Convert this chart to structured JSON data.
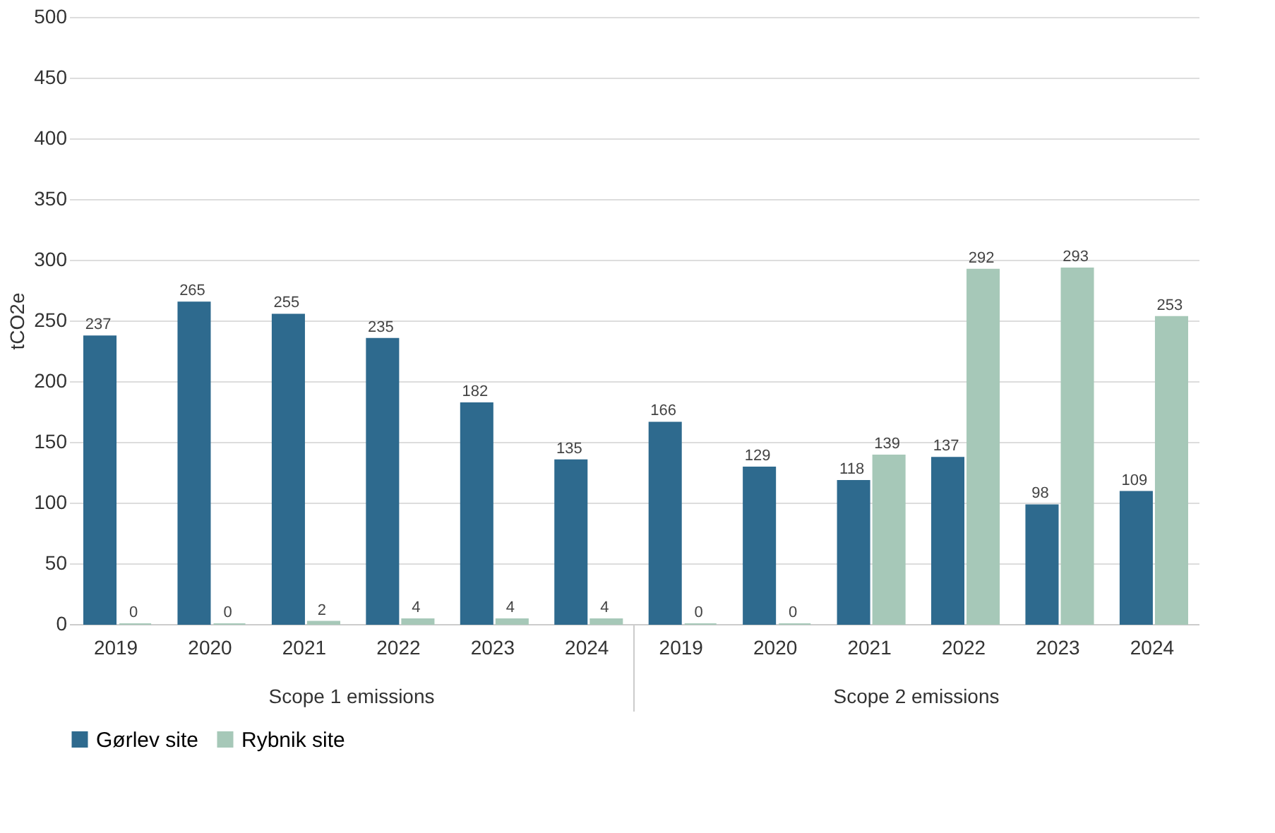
{
  "chart_data": {
    "type": "bar",
    "ylabel": "tCO2e",
    "categories": [
      "2019",
      "2020",
      "2021",
      "2022",
      "2023",
      "2024",
      "2019",
      "2020",
      "2021",
      "2022",
      "2023",
      "2024"
    ],
    "series": [
      {
        "name": "Gørlev site",
        "color": "#2e6a8e",
        "values": [
          237,
          265,
          255,
          235,
          182,
          135,
          166,
          129,
          118,
          137,
          98,
          109
        ]
      },
      {
        "name": "Rybnik site",
        "color": "#a6c8b8",
        "values": [
          0,
          0,
          2,
          4,
          4,
          4,
          0,
          0,
          139,
          292,
          293,
          253
        ]
      }
    ],
    "ylim": [
      0,
      500
    ],
    "yticks": [
      0,
      50,
      100,
      150,
      200,
      250,
      300,
      350,
      400,
      450,
      500
    ],
    "grid": "y",
    "legend": "bottom",
    "data_labels": true,
    "annotations": [
      "Scope 1 emissions",
      "Scope 2 emissions"
    ]
  }
}
